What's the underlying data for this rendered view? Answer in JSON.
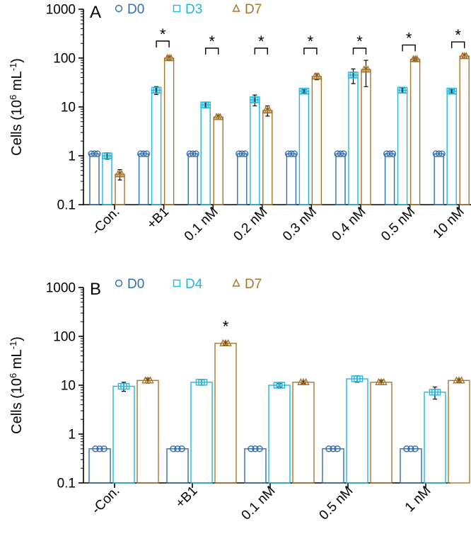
{
  "colors": {
    "D0": "#2e6db4",
    "D3": "#21b6e0",
    "D4": "#21b6e0",
    "D7": "#a9742a",
    "axis": "#000000"
  },
  "chart_data": [
    {
      "type": "bar",
      "panel_label": "A",
      "y_scale": "log",
      "ylim": [
        0.1,
        1000
      ],
      "ylabel_main": "Cells (10",
      "ylabel_exp": "6",
      "ylabel_unit": " mL",
      "ylabel_unit_exp": "-1",
      "ylabel_close": ")",
      "y_tick_labels": [
        "0.1",
        "1",
        "10",
        "100",
        "1000"
      ],
      "categories": [
        "-Con.",
        "+B1",
        "0.1 nM",
        "0.2 nM",
        "0.3 nM",
        "0.4 nM",
        "0.5 nM",
        "10 nM"
      ],
      "legend": [
        "D0",
        "D3",
        "D7"
      ],
      "series": [
        {
          "name": "D0",
          "values": [
            1.1,
            1.1,
            1.1,
            1.1,
            1.1,
            1.1,
            1.1,
            1.1
          ],
          "errors": [
            0,
            0,
            0,
            0,
            0,
            0,
            0,
            0
          ]
        },
        {
          "name": "D3",
          "values": [
            1.0,
            22,
            11,
            14,
            21,
            45,
            22,
            21
          ],
          "errors": [
            0.15,
            4,
            1.5,
            3.5,
            1.5,
            15,
            2.5,
            1.5
          ]
        },
        {
          "name": "D7",
          "values": [
            0.42,
            100,
            6.2,
            8.5,
            42,
            58,
            95,
            110
          ],
          "errors": [
            0.1,
            8,
            0.6,
            2,
            6,
            32,
            5,
            10
          ]
        }
      ],
      "significance": [
        {
          "category": "+B1",
          "label": "*"
        },
        {
          "category": "0.1 nM",
          "label": "*"
        },
        {
          "category": "0.2 nM",
          "label": "*"
        },
        {
          "category": "0.3 nM",
          "label": "*"
        },
        {
          "category": "0.4 nM",
          "label": "*"
        },
        {
          "category": "0.5 nM",
          "label": "*"
        },
        {
          "category": "10 nM",
          "label": "*"
        }
      ]
    },
    {
      "type": "bar",
      "panel_label": "B",
      "y_scale": "log",
      "ylim": [
        0.1,
        1000
      ],
      "ylabel_main": "Cells (10",
      "ylabel_exp": "6",
      "ylabel_unit": " mL",
      "ylabel_unit_exp": "-1",
      "ylabel_close": ")",
      "y_tick_labels": [
        "0.1",
        "1",
        "10",
        "100",
        "1000"
      ],
      "categories": [
        "-Con.",
        "+B1",
        "0.1 nM",
        "0.5 nM",
        "1 nM"
      ],
      "legend": [
        "D0",
        "D4",
        "D7"
      ],
      "series": [
        {
          "name": "D0",
          "values": [
            0.5,
            0.5,
            0.5,
            0.5,
            0.5
          ],
          "errors": [
            0,
            0,
            0,
            0,
            0
          ]
        },
        {
          "name": "D4",
          "values": [
            9.5,
            11.5,
            10,
            13.5,
            7.2
          ],
          "errors": [
            2,
            1.5,
            0.8,
            2,
            2
          ]
        },
        {
          "name": "D7",
          "values": [
            12.5,
            72,
            11.5,
            11.5,
            12.5
          ],
          "errors": [
            1.5,
            6,
            0.7,
            1.3,
            1
          ]
        }
      ],
      "significance": [
        {
          "category": "+B1",
          "label": "*"
        }
      ]
    }
  ]
}
